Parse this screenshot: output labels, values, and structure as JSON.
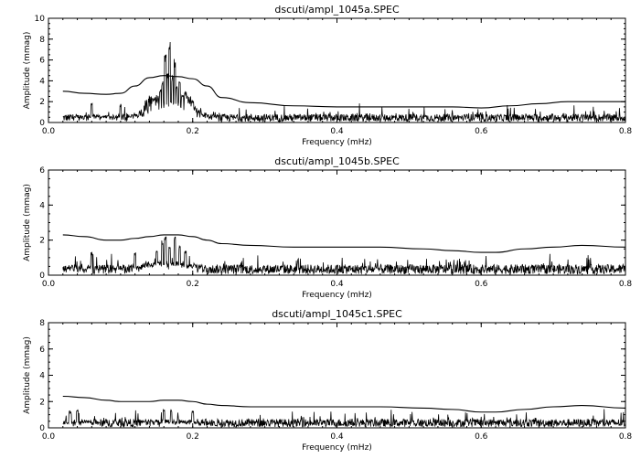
{
  "chart_data": [
    {
      "type": "line",
      "title": "dscuti/ampl_1045a.SPEC",
      "xlabel": "Frequency (mHz)",
      "ylabel": "Amplitude (mmag)",
      "xlim": [
        0.0,
        0.8
      ],
      "ylim": [
        0,
        10
      ],
      "xticks": [
        "0.0",
        "0.2",
        "0.4",
        "0.6",
        "0.8"
      ],
      "yticks": [
        "0",
        "2",
        "4",
        "6",
        "8",
        "10"
      ],
      "grid": false,
      "series": [
        {
          "kind": "threshold",
          "x": [
            0.02,
            0.05,
            0.08,
            0.1,
            0.12,
            0.14,
            0.16,
            0.18,
            0.2,
            0.22,
            0.24,
            0.28,
            0.34,
            0.4,
            0.46,
            0.52,
            0.56,
            0.6,
            0.64,
            0.68,
            0.72,
            0.76,
            0.8
          ],
          "values": [
            3.0,
            2.8,
            2.7,
            2.8,
            3.5,
            4.3,
            4.5,
            4.4,
            4.2,
            3.5,
            2.4,
            1.9,
            1.6,
            1.5,
            1.5,
            1.5,
            1.5,
            1.4,
            1.6,
            1.8,
            2.0,
            2.0,
            2.0
          ]
        },
        {
          "kind": "noise",
          "noise_base": 0.6,
          "noise_amp": 0.8,
          "peaks": [
            {
              "x": 0.14,
              "y": 1.8
            },
            {
              "x": 0.145,
              "y": 2.4
            },
            {
              "x": 0.15,
              "y": 2.2
            },
            {
              "x": 0.155,
              "y": 3.2
            },
            {
              "x": 0.158,
              "y": 4.0
            },
            {
              "x": 0.162,
              "y": 6.8
            },
            {
              "x": 0.165,
              "y": 5.0
            },
            {
              "x": 0.168,
              "y": 8.0
            },
            {
              "x": 0.172,
              "y": 4.6
            },
            {
              "x": 0.175,
              "y": 6.2
            },
            {
              "x": 0.178,
              "y": 3.5
            },
            {
              "x": 0.182,
              "y": 4.1
            },
            {
              "x": 0.186,
              "y": 2.7
            },
            {
              "x": 0.19,
              "y": 3.0
            },
            {
              "x": 0.195,
              "y": 2.0
            },
            {
              "x": 0.2,
              "y": 2.2
            },
            {
              "x": 0.1,
              "y": 1.8
            },
            {
              "x": 0.06,
              "y": 1.9
            }
          ]
        }
      ]
    },
    {
      "type": "line",
      "title": "dscuti/ampl_1045b.SPEC",
      "xlabel": "Frequency (mHz)",
      "ylabel": "Amplitude (mmag)",
      "xlim": [
        0.0,
        0.8
      ],
      "ylim": [
        0,
        6
      ],
      "xticks": [
        "0.0",
        "0.2",
        "0.4",
        "0.6",
        "0.8"
      ],
      "yticks": [
        "0",
        "2",
        "4",
        "6"
      ],
      "grid": false,
      "series": [
        {
          "kind": "threshold",
          "x": [
            0.02,
            0.05,
            0.08,
            0.1,
            0.12,
            0.14,
            0.16,
            0.18,
            0.2,
            0.22,
            0.24,
            0.28,
            0.34,
            0.4,
            0.46,
            0.52,
            0.56,
            0.6,
            0.62,
            0.66,
            0.7,
            0.74,
            0.8
          ],
          "values": [
            2.3,
            2.2,
            2.0,
            2.0,
            2.1,
            2.2,
            2.3,
            2.3,
            2.2,
            2.0,
            1.8,
            1.7,
            1.6,
            1.6,
            1.6,
            1.5,
            1.4,
            1.3,
            1.3,
            1.5,
            1.6,
            1.7,
            1.6
          ]
        },
        {
          "kind": "noise",
          "noise_base": 0.45,
          "noise_amp": 0.6,
          "peaks": [
            {
              "x": 0.15,
              "y": 1.5
            },
            {
              "x": 0.158,
              "y": 2.0
            },
            {
              "x": 0.162,
              "y": 2.3
            },
            {
              "x": 0.168,
              "y": 1.8
            },
            {
              "x": 0.175,
              "y": 2.2
            },
            {
              "x": 0.182,
              "y": 1.7
            },
            {
              "x": 0.19,
              "y": 1.5
            },
            {
              "x": 0.12,
              "y": 1.3
            },
            {
              "x": 0.06,
              "y": 1.3
            }
          ]
        }
      ]
    },
    {
      "type": "line",
      "title": "dscuti/ampl_1045c1.SPEC",
      "xlabel": "Frequency (mHz)",
      "ylabel": "Amplitude (mmag)",
      "xlim": [
        0.0,
        0.8
      ],
      "ylim": [
        0,
        8
      ],
      "xticks": [
        "0.0",
        "0.2",
        "0.4",
        "0.6",
        "0.8"
      ],
      "yticks": [
        "0",
        "2",
        "4",
        "6",
        "8"
      ],
      "grid": false,
      "series": [
        {
          "kind": "threshold",
          "x": [
            0.02,
            0.05,
            0.08,
            0.1,
            0.12,
            0.14,
            0.16,
            0.18,
            0.2,
            0.22,
            0.24,
            0.28,
            0.34,
            0.4,
            0.46,
            0.52,
            0.56,
            0.6,
            0.62,
            0.66,
            0.7,
            0.74,
            0.8
          ],
          "values": [
            2.4,
            2.3,
            2.1,
            2.0,
            2.0,
            2.0,
            2.1,
            2.1,
            2.0,
            1.8,
            1.7,
            1.6,
            1.6,
            1.6,
            1.6,
            1.5,
            1.4,
            1.2,
            1.2,
            1.4,
            1.6,
            1.7,
            1.5
          ]
        },
        {
          "kind": "noise",
          "noise_base": 0.5,
          "noise_amp": 0.6,
          "peaks": [
            {
              "x": 0.04,
              "y": 1.4
            },
            {
              "x": 0.16,
              "y": 1.5
            },
            {
              "x": 0.17,
              "y": 1.4
            },
            {
              "x": 0.2,
              "y": 1.3
            },
            {
              "x": 0.03,
              "y": 1.3
            }
          ]
        }
      ]
    }
  ]
}
